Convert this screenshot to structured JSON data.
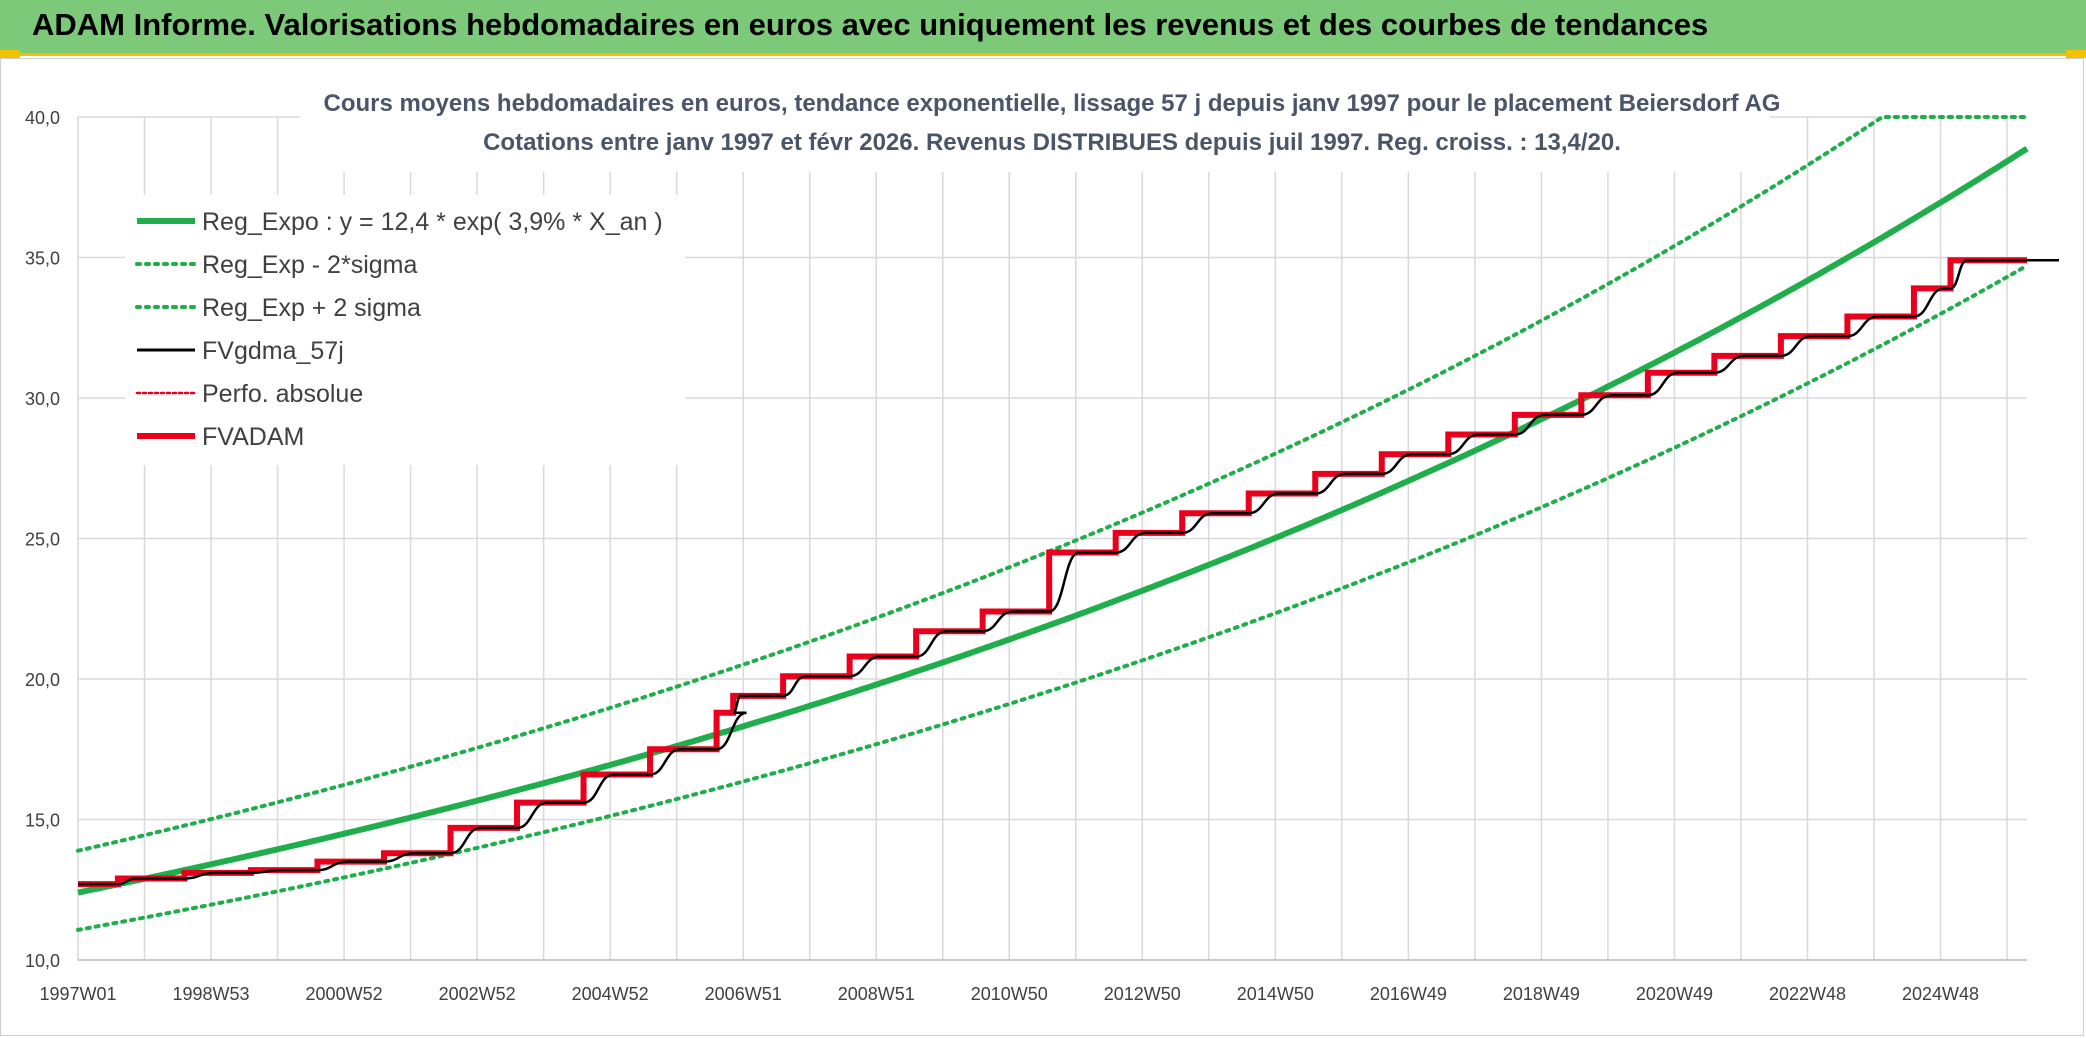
{
  "header": {
    "title": "ADAM Informe. Valorisations hebdomadaires en euros avec uniquement les revenus et des courbes de tendances"
  },
  "colors": {
    "header_bg": "#7dc97a",
    "accent_yellow": "#f2c200",
    "reg_green": "#1fae4b",
    "fvgdma_black": "#000000",
    "fvadam_red": "#e8001c",
    "grid": "#d9d9d9"
  },
  "chart_data": {
    "type": "line",
    "title_lines": [
      "Cours moyens hebdomadaires en euros, tendance exponentielle, lissage 57 j depuis janv 1997 pour le placement Beiersdorf AG",
      "Cotations entre janv 1997 et févr 2026. Revenus DISTRIBUES depuis juil 1997. Reg. croiss. : 13,4/20."
    ],
    "xlabel": "",
    "ylabel": "",
    "xlim": [
      1997.0,
      2026.3
    ],
    "ylim": [
      10,
      40
    ],
    "y_ticks": [
      10,
      15,
      20,
      25,
      30,
      35,
      40
    ],
    "y_tick_labels": [
      "10,0",
      "15,0",
      "20,0",
      "25,0",
      "30,0",
      "35,0",
      "40,0"
    ],
    "x_ticks": [
      1997.0,
      1999.0,
      2001.0,
      2003.0,
      2005.0,
      2007.0,
      2009.0,
      2011.0,
      2013.0,
      2015.0,
      2017.0,
      2019.0,
      2021.0,
      2023.0,
      2025.0
    ],
    "x_tick_labels": [
      "1997W01",
      "1998W53",
      "2000W52",
      "2002W52",
      "2004W52",
      "2006W51",
      "2008W51",
      "2010W50",
      "2012W50",
      "2014W50",
      "2016W49",
      "2018W49",
      "2020W49",
      "2022W48",
      "2024W48"
    ],
    "x_grid_step_years": 1,
    "grid": true,
    "legend_position": "top-left",
    "regression": {
      "a": 12.4,
      "b": 0.039,
      "sigma_factor": 1.12
    },
    "series": [
      {
        "name": "Reg_Expo : y = 12,4 * exp( 3,9% *  X_an )",
        "color": "#1fae4b",
        "style": "solid-thick",
        "source": "regression"
      },
      {
        "name": "Reg_Exp - 2*sigma",
        "color": "#1fae4b",
        "style": "dotted",
        "source": "regression_lower"
      },
      {
        "name": "Reg_Exp + 2 sigma",
        "color": "#1fae4b",
        "style": "dotted",
        "source": "regression_upper"
      },
      {
        "name": "FVgdma_57j",
        "color": "#000000",
        "style": "smooth-steps",
        "source": "steps"
      },
      {
        "name": "Perfo. absolue",
        "color": "#e8001c",
        "style": "dotted-legend-only",
        "source": "none"
      },
      {
        "name": "FVADAM",
        "color": "#e8001c",
        "style": "steps-thick",
        "source": "steps"
      }
    ],
    "steps": {
      "x": [
        1997.0,
        1997.6,
        1998.6,
        1999.6,
        2000.6,
        2001.6,
        2002.6,
        2003.6,
        2004.6,
        2005.6,
        2006.6,
        2006.85,
        2007.6,
        2008.6,
        2009.6,
        2010.6,
        2011.6,
        2012.6,
        2013.6,
        2014.6,
        2015.6,
        2016.6,
        2017.6,
        2018.6,
        2019.6,
        2020.6,
        2021.6,
        2022.6,
        2023.6,
        2024.6,
        2025.15,
        2026.3
      ],
      "y": [
        12.7,
        12.9,
        13.1,
        13.2,
        13.5,
        13.8,
        14.7,
        15.6,
        16.6,
        17.5,
        18.8,
        19.4,
        20.1,
        20.8,
        21.7,
        22.4,
        24.5,
        25.2,
        25.9,
        26.6,
        27.3,
        28.0,
        28.7,
        29.4,
        30.1,
        30.9,
        31.5,
        32.2,
        32.9,
        33.9,
        34.9,
        34.9
      ]
    }
  }
}
